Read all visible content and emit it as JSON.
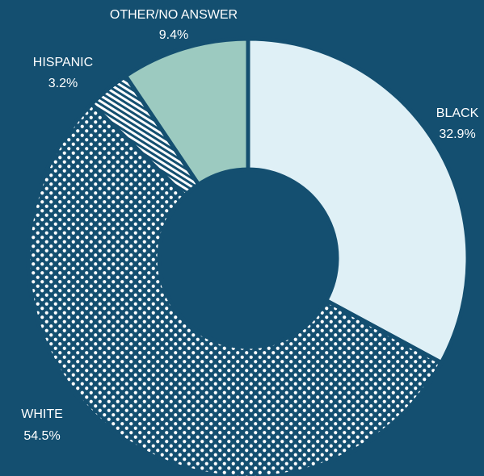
{
  "chart_data": {
    "type": "pie",
    "variant": "donut",
    "title": "",
    "slices": [
      {
        "name": "BLACK",
        "value": 32.9,
        "value_label": "32.9%",
        "fill": "#dff0f6",
        "pattern": "solid"
      },
      {
        "name": "WHITE",
        "value": 54.5,
        "value_label": "54.5%",
        "fill": "#144f70",
        "pattern": "dots"
      },
      {
        "name": "HISPANIC",
        "value": 3.2,
        "value_label": "3.2%",
        "fill": "#144f70",
        "pattern": "stripes"
      },
      {
        "name": "OTHER/NO ANSWER",
        "value": 9.4,
        "value_label": "9.4%",
        "fill": "#9ccac0",
        "pattern": "solid"
      }
    ],
    "start_angle": "12 o'clock",
    "direction": "clockwise",
    "legend": "none"
  },
  "colors": {
    "background": "#144f70",
    "label_text": "#ffffff",
    "pattern_mark": "#ffffff"
  }
}
